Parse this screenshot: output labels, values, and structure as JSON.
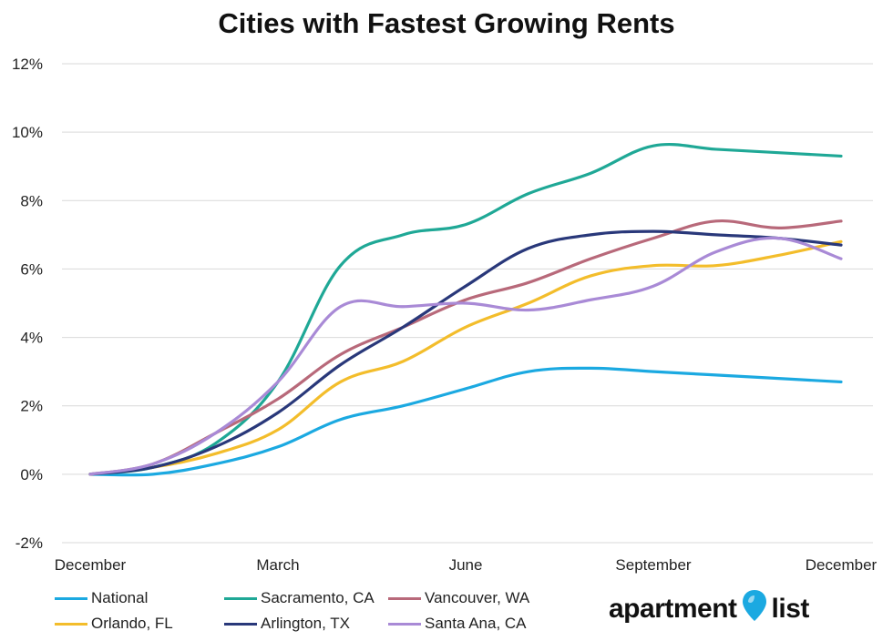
{
  "chart_data": {
    "type": "line",
    "title": "Cities with Fastest Growing Rents",
    "xlabel": "",
    "ylabel": "",
    "x_tick_labels": [
      "December",
      "March",
      "June",
      "September",
      "December"
    ],
    "x_tick_positions": [
      0,
      3,
      6,
      9,
      12
    ],
    "x": [
      0,
      1,
      2,
      3,
      4,
      5,
      6,
      7,
      8,
      9,
      10,
      11,
      12
    ],
    "y_ticks": [
      "-2%",
      "0%",
      "2%",
      "4%",
      "6%",
      "8%",
      "10%",
      "12%"
    ],
    "ylim": [
      -2,
      12
    ],
    "grid": true,
    "legend_position": "bottom",
    "series": [
      {
        "name": "National",
        "color": "#1ba9e1",
        "values": [
          0.0,
          0.0,
          0.3,
          0.8,
          1.6,
          2.0,
          2.5,
          3.0,
          3.1,
          3.0,
          2.9,
          2.8,
          2.7
        ]
      },
      {
        "name": "Sacramento, CA",
        "color": "#1fa896",
        "values": [
          0.0,
          0.2,
          0.9,
          2.7,
          6.1,
          7.0,
          7.3,
          8.2,
          8.8,
          9.6,
          9.5,
          9.4,
          9.3
        ]
      },
      {
        "name": "Vancouver, WA",
        "color": "#b8697a",
        "values": [
          0.0,
          0.3,
          1.2,
          2.2,
          3.5,
          4.3,
          5.1,
          5.6,
          6.3,
          6.9,
          7.4,
          7.2,
          7.4
        ]
      },
      {
        "name": "Orlando, FL",
        "color": "#f3bd2b",
        "values": [
          0.0,
          0.2,
          0.6,
          1.3,
          2.7,
          3.3,
          4.3,
          5.0,
          5.8,
          6.1,
          6.1,
          6.4,
          6.8
        ]
      },
      {
        "name": "Arlington, TX",
        "color": "#29387a",
        "values": [
          0.0,
          0.2,
          0.8,
          1.8,
          3.2,
          4.3,
          5.5,
          6.6,
          7.0,
          7.1,
          7.0,
          6.9,
          6.7
        ]
      },
      {
        "name": "Santa Ana, CA",
        "color": "#a98ad6",
        "values": [
          0.0,
          0.3,
          1.2,
          2.7,
          4.9,
          4.9,
          5.0,
          4.8,
          5.1,
          5.5,
          6.5,
          6.9,
          6.3
        ]
      }
    ]
  },
  "logo": {
    "text_left": "apartment",
    "text_right": "list",
    "pin_color": "#1ba9e1",
    "accent_color": "#12a3c0"
  }
}
